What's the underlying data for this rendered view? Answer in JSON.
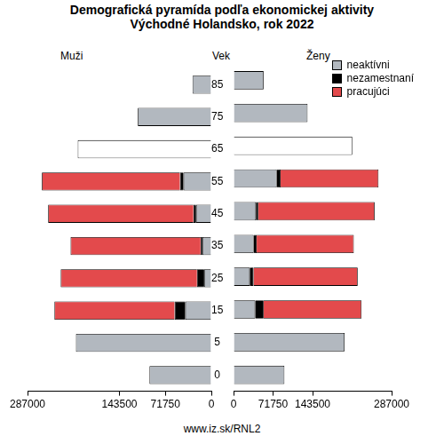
{
  "chart_data": {
    "type": "bar",
    "orientation": "horizontal",
    "stacked": true,
    "grid": false,
    "legend": "top right",
    "title": "Demografická pyramída podľa ekonomickej aktivity",
    "subtitle": "Východné Holandsko, rok 2022",
    "y_label": "Vek",
    "source": "www.iz.sk/RNL2",
    "categories": [
      "0",
      "5",
      "15",
      "25",
      "35",
      "45",
      "55",
      "65",
      "75",
      "85"
    ],
    "panels": [
      {
        "title": "Muži",
        "xlim": [
          287000,
          0
        ],
        "xticks": [
          0,
          71750,
          143500,
          287000
        ],
        "series": [
          {
            "name": "neaktívni",
            "color": "#b2b8bf",
            "colors": [
              "#b2b8bf",
              "#b2b8bf",
              "#b2b8bf",
              "#b2b8bf",
              "#b2b8bf",
              "#b2b8bf",
              "#b2b8bf",
              "#ffffff",
              "#b2b8bf",
              "#b2b8bf"
            ],
            "values": [
              96600,
              211400,
              40600,
              11200,
              14000,
              23800,
              43400,
              208600,
              114800,
              29400
            ]
          },
          {
            "name": "nezamestnaní",
            "color": "#000000",
            "values": [
              null,
              null,
              16800,
              11200,
              2800,
              4200,
              5600,
              null,
              null,
              null
            ]
          },
          {
            "name": "pracujúci",
            "color": "#e34a4c",
            "values": [
              null,
              null,
              187600,
              212800,
              203000,
              226800,
              215600,
              null,
              null,
              null
            ]
          }
        ]
      },
      {
        "title": "Ženy",
        "xlim": [
          0,
          287000
        ],
        "xticks": [
          0,
          71750,
          143500,
          287000
        ],
        "series": [
          {
            "name": "neaktívni",
            "color": "#b2b8bf",
            "colors": [
              "#b2b8bf",
              "#b2b8bf",
              "#b2b8bf",
              "#b2b8bf",
              "#b2b8bf",
              "#b2b8bf",
              "#b2b8bf",
              "#ffffff",
              "#b2b8bf",
              "#b2b8bf"
            ],
            "values": [
              92400,
              201600,
              39200,
              29400,
              36400,
              40600,
              78400,
              215600,
              134400,
              54600
            ]
          },
          {
            "name": "nezamestnaní",
            "color": "#000000",
            "values": [
              null,
              null,
              15400,
              7000,
              5600,
              4200,
              7000,
              null,
              null,
              null
            ]
          },
          {
            "name": "pracujúci",
            "color": "#e34a4c",
            "values": [
              null,
              null,
              177800,
              189000,
              176400,
              211400,
              177800,
              null,
              null,
              null
            ]
          }
        ]
      }
    ]
  }
}
